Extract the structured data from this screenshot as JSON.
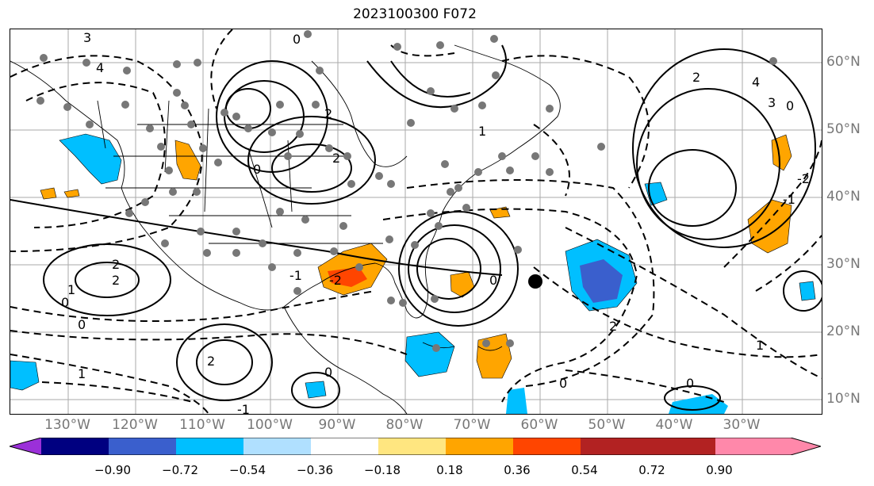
{
  "title": "2023100300 F072",
  "lat_labels": [
    "60°N",
    "50°N",
    "40°N",
    "30°N",
    "20°N",
    "10°N"
  ],
  "lon_labels": [
    "130°W",
    "120°W",
    "110°W",
    "100°W",
    "90°W",
    "80°W",
    "70°W",
    "60°W",
    "50°W",
    "40°W",
    "30°W"
  ],
  "colorbar": {
    "ticks": [
      "−0.90",
      "−0.72",
      "−0.54",
      "−0.36",
      "−0.18",
      "0.18",
      "0.36",
      "0.54",
      "0.72",
      "0.90"
    ],
    "colors": [
      "#9b30d9",
      "#000080",
      "#3a5fcd",
      "#00bfff",
      "#b0e0ff",
      "#ffffff",
      "#ffe680",
      "#ffa500",
      "#ff4500",
      "#b22222",
      "#ff88aa"
    ]
  },
  "contour_labels": [
    "3",
    "4",
    "0",
    "2",
    "1",
    "2",
    "0",
    "-1",
    "-2",
    "2",
    "2",
    "1",
    "0",
    "0",
    "1",
    "2",
    "0",
    "-1",
    "0",
    "3",
    "4",
    "2",
    "-1",
    "-2",
    "0",
    "2",
    "1",
    "0",
    "0"
  ],
  "marker": "observation-point"
}
